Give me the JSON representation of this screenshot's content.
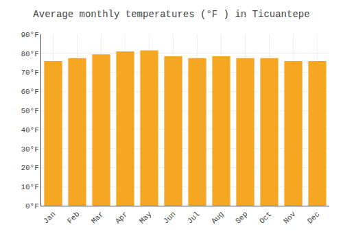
{
  "chart_data": {
    "type": "bar",
    "title": "Average monthly temperatures (°F ) in Ticuantepe",
    "categories": [
      "Jan",
      "Feb",
      "Mar",
      "Apr",
      "May",
      "Jun",
      "Jul",
      "Aug",
      "Sep",
      "Oct",
      "Nov",
      "Dec"
    ],
    "values": [
      76,
      77.5,
      79.5,
      81,
      81.5,
      78.5,
      77.5,
      78.5,
      77.5,
      77.5,
      76,
      76
    ],
    "color": "#F5A623",
    "ylim": [
      0,
      90
    ],
    "yticks": [
      {
        "value": 0,
        "label": "0°F"
      },
      {
        "value": 10,
        "label": "10°F"
      },
      {
        "value": 20,
        "label": "20°F"
      },
      {
        "value": 30,
        "label": "30°F"
      },
      {
        "value": 40,
        "label": "40°F"
      },
      {
        "value": 50,
        "label": "50°F"
      },
      {
        "value": 60,
        "label": "60°F"
      },
      {
        "value": 70,
        "label": "70°F"
      },
      {
        "value": 80,
        "label": "80°F"
      },
      {
        "value": 90,
        "label": "90°F"
      }
    ],
    "grid": true
  }
}
